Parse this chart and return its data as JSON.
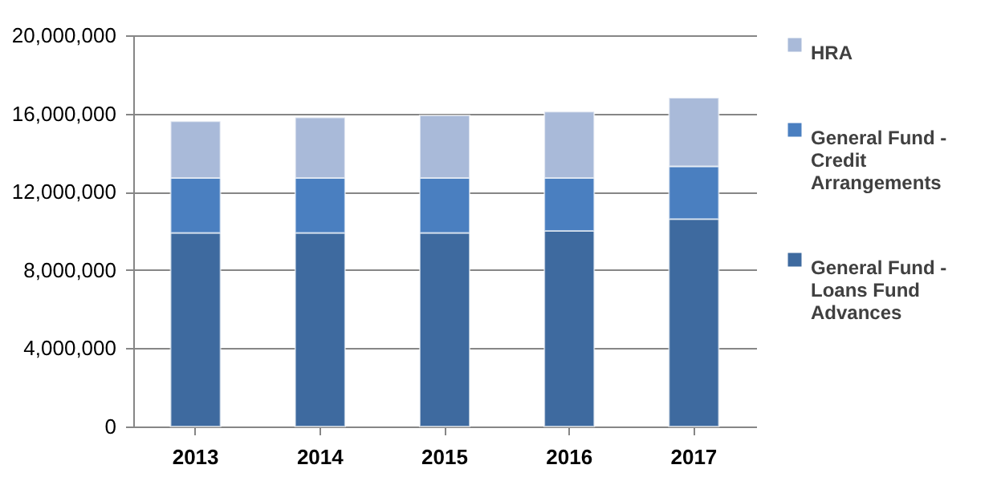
{
  "chart_data": {
    "type": "bar",
    "stacked": true,
    "categories": [
      "2013",
      "2014",
      "2015",
      "2016",
      "2017"
    ],
    "series": [
      {
        "name": "General Fund - Loans Fund Advances",
        "color": "#3e6a9f",
        "values": [
          9900000,
          9900000,
          9900000,
          10000000,
          10600000
        ]
      },
      {
        "name": "General Fund - Credit Arrangements",
        "color": "#4a7fc0",
        "values": [
          2800000,
          2800000,
          2800000,
          2700000,
          2700000
        ]
      },
      {
        "name": "HRA",
        "color": "#a9bad9",
        "values": [
          2900000,
          3100000,
          3200000,
          3400000,
          3500000
        ]
      }
    ],
    "ylim": [
      0,
      20000000
    ],
    "yticks": [
      0,
      {
        "value": 4000000,
        "label": "4,000,000"
      },
      {
        "value": 8000000,
        "label": "8,000,000"
      },
      {
        "value": 12000000,
        "label": "12,000,000"
      },
      {
        "value": 16000000,
        "label": "16,000,000"
      },
      {
        "value": 20000000,
        "label": "20,000,000"
      }
    ],
    "grid": "y",
    "legend": "right"
  }
}
